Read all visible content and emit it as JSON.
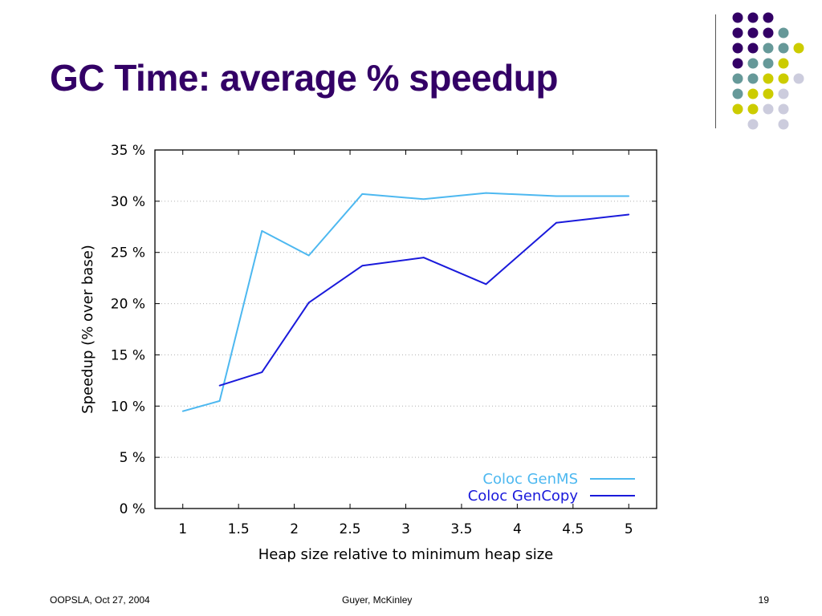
{
  "slide": {
    "title": "GC Time: average % speedup",
    "footer_left": "OOPSLA, Oct 27, 2004",
    "footer_center": "Guyer, McKinley",
    "page_number": "19"
  },
  "colors": {
    "title": "#330066",
    "dot_purple": "#330066",
    "dot_teal": "#669999",
    "dot_yellow": "#cccc00",
    "dot_lavender": "#ccccdd",
    "genms": "#4db8f0",
    "gencopy": "#1a1adb"
  },
  "chart_data": {
    "type": "line",
    "xlabel": "Heap size relative to minimum heap size",
    "ylabel": "Speedup (% over base)",
    "xlim": [
      0.75,
      5.25
    ],
    "ylim": [
      0,
      35
    ],
    "x_ticks": [
      "1",
      "1.5",
      "2",
      "2.5",
      "3",
      "3.5",
      "4",
      "4.5",
      "5"
    ],
    "y_ticks": [
      "0 %",
      "5 %",
      "10 %",
      "15 %",
      "20 %",
      "25 %",
      "30 %",
      "35 %"
    ],
    "grid": "horizontal dotted",
    "legend_position": "bottom-right",
    "series": [
      {
        "name": "Coloc GenMS",
        "x": [
          1.0,
          1.33,
          1.71,
          2.13,
          2.61,
          3.16,
          3.72,
          4.35,
          5.0
        ],
        "y": [
          9.5,
          10.5,
          27.1,
          24.7,
          30.7,
          30.2,
          30.8,
          30.5,
          30.5
        ]
      },
      {
        "name": "Coloc GenCopy",
        "x": [
          1.33,
          1.71,
          2.13,
          2.61,
          3.16,
          3.72,
          4.35,
          5.0
        ],
        "y": [
          12.0,
          13.3,
          20.1,
          23.7,
          24.5,
          21.9,
          27.9,
          28.7
        ]
      }
    ]
  }
}
